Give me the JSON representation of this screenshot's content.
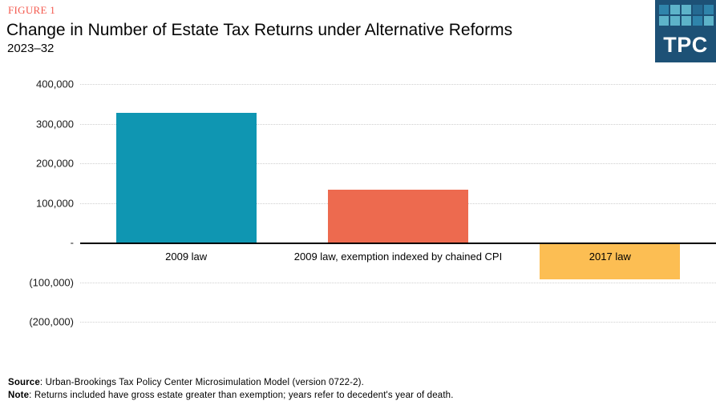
{
  "header": {
    "figure_label": "FIGURE 1",
    "figure_label_color": "#f4594e",
    "title": "Change in Number of Estate Tax Returns under Alternative Reforms",
    "subtitle": "2023–32"
  },
  "logo": {
    "text": "TPC",
    "bg_color": "#1d5176",
    "square_colors": [
      "#2f84ab",
      "#5db3c9",
      "#5db3c9",
      "#256a92",
      "#2f84ab",
      "#5db3c9",
      "#5db3c9",
      "#5db3c9",
      "#2f84ab",
      "#5db3c9"
    ]
  },
  "chart_data": {
    "type": "bar",
    "title": "Change in Number of Estate Tax Returns under Alternative Reforms",
    "subtitle": "2023–32",
    "categories": [
      "2009 law",
      "2009 law, exemption indexed by chained CPI",
      "2017 law"
    ],
    "values": [
      328000,
      133000,
      -88000
    ],
    "bar_colors": [
      "#0f96b2",
      "#ed6a4f",
      "#fcbe53"
    ],
    "xlabel": "",
    "ylabel": "",
    "ylim": [
      -200000,
      400000
    ],
    "y_ticks": [
      {
        "value": 400000,
        "label": "400,000"
      },
      {
        "value": 300000,
        "label": "300,000"
      },
      {
        "value": 200000,
        "label": "200,000"
      },
      {
        "value": 100000,
        "label": "100,000"
      },
      {
        "value": 0,
        "label": "-"
      },
      {
        "value": -100000,
        "label": "(100,000)"
      },
      {
        "value": -200000,
        "label": "(200,000)"
      }
    ],
    "grid": "horizontal-dotted",
    "legend": "none"
  },
  "footer": {
    "source_label": "Source",
    "source_text": ":  Urban-Brookings  Tax Policy Center  Microsimulation  Model (version 0722-2).",
    "note_label": "Note",
    "note_text": ":  Returns included  have gross estate  greater than  exemption;  years refer  to decedent's  year of death."
  }
}
